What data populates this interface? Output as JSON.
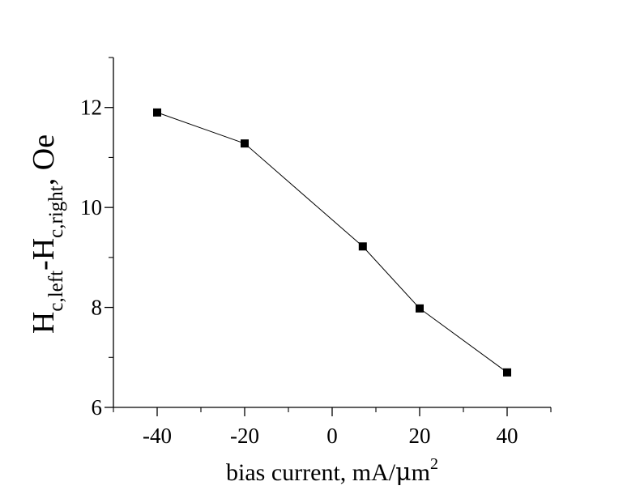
{
  "chart_data": {
    "type": "line",
    "x": [
      -40,
      -20,
      7,
      20,
      40
    ],
    "y": [
      11.9,
      11.28,
      9.22,
      7.98,
      6.7
    ],
    "xlim": [
      -50,
      50
    ],
    "ylim": [
      6,
      13
    ],
    "x_major_ticks": [
      -40,
      -20,
      0,
      20,
      40
    ],
    "y_major_ticks": [
      6,
      8,
      10,
      12
    ],
    "x_tick_labels": [
      "-40",
      "-20",
      "0",
      "20",
      "40"
    ],
    "y_tick_labels": [
      "6",
      "8",
      "10",
      "12"
    ],
    "xlabel": {
      "main": "bias current, mA/",
      "mu": "μ",
      "unit": "m",
      "sup": "2"
    },
    "ylabel": {
      "h1": "H",
      "sub1": "c,left",
      "dash": "-H",
      "sub2": "c,right",
      "tail": ", Oe"
    },
    "marker": "square",
    "line_color": "#000000",
    "marker_color": "#000000",
    "grid": false,
    "legend": "none"
  }
}
